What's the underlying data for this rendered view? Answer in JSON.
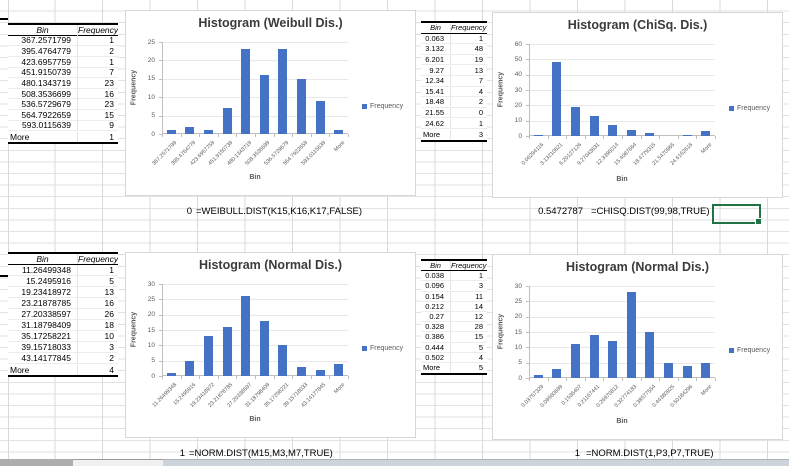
{
  "colors": {
    "bar_fill": "#4472C4",
    "chart_title": "#3B3B3B",
    "axis_text": "#595959",
    "selection_border": "#217346",
    "sheet_gridline": "#D9D9D9"
  },
  "tables": [
    {
      "name": "weibull-bin-table",
      "headers": [
        "Bin",
        "Frequency"
      ],
      "rows": [
        [
          "367.2571799",
          "1"
        ],
        [
          "395.4764779",
          "2"
        ],
        [
          "423.6957759",
          "1"
        ],
        [
          "451.9150739",
          "7"
        ],
        [
          "480.1343719",
          "23"
        ],
        [
          "508.3536699",
          "16"
        ],
        [
          "536.5729679",
          "23"
        ],
        [
          "564.7922659",
          "15"
        ],
        [
          "593.0115639",
          "9"
        ],
        [
          "More",
          "1"
        ]
      ]
    },
    {
      "name": "chisq-bin-table",
      "headers": [
        "Bin",
        "Frequency"
      ],
      "rows": [
        [
          "0.063",
          "1"
        ],
        [
          "3.132",
          "48"
        ],
        [
          "6.201",
          "19"
        ],
        [
          "9.27",
          "13"
        ],
        [
          "12.34",
          "7"
        ],
        [
          "15.41",
          "4"
        ],
        [
          "18.48",
          "2"
        ],
        [
          "21.55",
          "0"
        ],
        [
          "24.62",
          "1"
        ],
        [
          "More",
          "3"
        ]
      ]
    },
    {
      "name": "normal-left-bin-table",
      "headers": [
        "Bin",
        "Frequency"
      ],
      "rows": [
        [
          "11.26499348",
          "1"
        ],
        [
          "15.2495916",
          "5"
        ],
        [
          "19.23418972",
          "13"
        ],
        [
          "23.21878785",
          "16"
        ],
        [
          "27.20338597",
          "26"
        ],
        [
          "31.18798409",
          "18"
        ],
        [
          "35.17258221",
          "10"
        ],
        [
          "39.15718033",
          "3"
        ],
        [
          "43.14177845",
          "2"
        ],
        [
          "More",
          "4"
        ]
      ]
    },
    {
      "name": "normal-right-bin-table",
      "headers": [
        "Bin",
        "Frequency"
      ],
      "rows": [
        [
          "0.038",
          "1"
        ],
        [
          "0.096",
          "3"
        ],
        [
          "0.154",
          "11"
        ],
        [
          "0.212",
          "14"
        ],
        [
          "0.27",
          "12"
        ],
        [
          "0.328",
          "28"
        ],
        [
          "0.386",
          "15"
        ],
        [
          "0.444",
          "5"
        ],
        [
          "0.502",
          "4"
        ],
        [
          "More",
          "5"
        ]
      ]
    }
  ],
  "chart_data": [
    {
      "type": "bar",
      "title": "Histogram (Weibull Dis.)",
      "categories": [
        "367.2571799",
        "395.4764779",
        "423.6957759",
        "451.9150739",
        "480.1343719",
        "508.3536699",
        "536.5729679",
        "564.7922659",
        "593.0115639",
        "More"
      ],
      "values": [
        1,
        2,
        1,
        7,
        23,
        16,
        23,
        15,
        9,
        1
      ],
      "xlabel": "Bin",
      "ylabel": "Frequency",
      "ylim": [
        0,
        25
      ],
      "ytick_step": 5,
      "legend": "Frequency",
      "legend_position": "right",
      "grid": true
    },
    {
      "type": "bar",
      "title": "Histogram (ChiSq. Dis.)",
      "categories": [
        "0.06294116",
        "3.13210621",
        "6.20127126",
        "9.27043631",
        "12.3396014",
        "15.4087664",
        "18.4779315",
        "21.5470965",
        "24.6162616",
        "More"
      ],
      "values": [
        1,
        48,
        19,
        13,
        7,
        4,
        2,
        0,
        1,
        3
      ],
      "xlabel": "Bin",
      "ylabel": "Frequency",
      "ylim": [
        0,
        60
      ],
      "ytick_step": 10,
      "legend": "Frequency",
      "legend_position": "right",
      "grid": true
    },
    {
      "type": "bar",
      "title": "Histogram (Normal Dis.)",
      "categories": [
        "11.26499348",
        "15.2495916",
        "19.23418972",
        "23.21878785",
        "27.20338597",
        "31.18798409",
        "35.17258221",
        "39.15718033",
        "43.14177845",
        "More"
      ],
      "values": [
        1,
        5,
        13,
        16,
        26,
        18,
        10,
        3,
        2,
        4
      ],
      "xlabel": "Bin",
      "ylabel": "Frequency",
      "ylim": [
        0,
        30
      ],
      "ytick_step": 5,
      "legend": "Frequency",
      "legend_position": "right",
      "grid": true
    },
    {
      "type": "bar",
      "title": "Histogram (Normal Dis.)",
      "categories": [
        "0.03757329",
        "0.09560699",
        "0.1536407",
        "0.21167441",
        "0.26970812",
        "0.32774183",
        "0.38577554",
        "0.44380925",
        "0.50184296",
        "More"
      ],
      "values": [
        1,
        3,
        11,
        14,
        12,
        28,
        15,
        5,
        4,
        5
      ],
      "xlabel": "Bin",
      "ylabel": "Frequency",
      "ylim": [
        0,
        30
      ],
      "ytick_step": 5,
      "legend": "Frequency",
      "legend_position": "right",
      "grid": true
    }
  ],
  "formulas": [
    {
      "value": "0",
      "formula": "=WEIBULL.DIST(K15,K16,K17,FALSE)"
    },
    {
      "value": "0.5472787",
      "formula": "=CHISQ.DIST(99,98,TRUE)"
    },
    {
      "value": "1",
      "formula": "=NORM.DIST(M15,M3,M7,TRUE)"
    },
    {
      "value": "1",
      "formula": "=NORM.DIST(1,P3,P7,TRUE)"
    }
  ]
}
